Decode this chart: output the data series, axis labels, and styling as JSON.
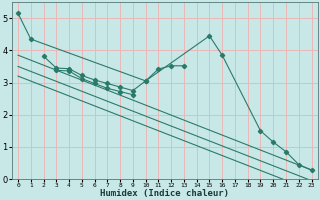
{
  "background_color": "#c8e8e8",
  "grid_color": "#e8b8b8",
  "line_color": "#2a7a6a",
  "xlabel": "Humidex (Indice chaleur)",
  "xlim": [
    -0.5,
    23.5
  ],
  "ylim": [
    0,
    5.5
  ],
  "yticks": [
    0,
    1,
    2,
    3,
    4,
    5
  ],
  "xtick_labels": [
    "0",
    "1",
    "2",
    "3",
    "4",
    "5",
    "6",
    "7",
    "8",
    "9",
    "10",
    "11",
    "12",
    "13",
    "14",
    "15",
    "16",
    "17",
    "18",
    "19",
    "20",
    "21",
    "22",
    "23"
  ],
  "linear_lines": [
    {
      "x_start": 0,
      "y_start": 3.85,
      "x_end": 23,
      "y_end": 0.28
    },
    {
      "x_start": 0,
      "y_start": 3.5,
      "x_end": 23,
      "y_end": -0.05
    },
    {
      "x_start": 0,
      "y_start": 3.2,
      "x_end": 23,
      "y_end": -0.35
    }
  ],
  "series0_x": [
    0,
    1,
    10,
    15,
    16,
    19,
    20,
    21,
    22,
    23
  ],
  "series0_y": [
    5.15,
    4.35,
    3.05,
    4.45,
    3.85,
    1.5,
    1.15,
    0.85,
    0.45,
    0.28
  ],
  "series1_x": [
    2,
    3,
    4,
    5,
    6,
    7,
    8,
    9,
    10,
    11,
    12,
    13
  ],
  "series1_y": [
    3.82,
    3.45,
    3.43,
    3.22,
    3.08,
    2.97,
    2.86,
    2.75,
    3.05,
    3.42,
    3.52,
    3.52
  ],
  "series2_x": [
    3,
    4,
    5,
    6,
    7,
    8,
    9
  ],
  "series2_y": [
    3.38,
    3.36,
    3.12,
    2.97,
    2.82,
    2.72,
    2.62
  ]
}
